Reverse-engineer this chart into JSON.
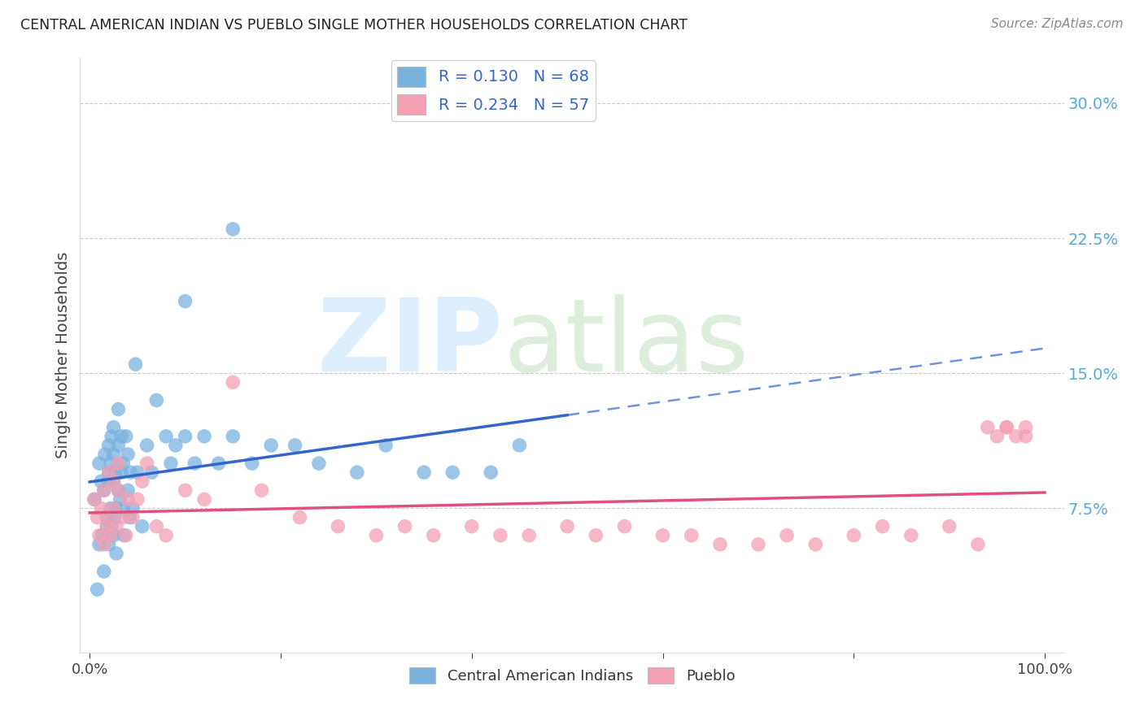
{
  "title": "CENTRAL AMERICAN INDIAN VS PUEBLO SINGLE MOTHER HOUSEHOLDS CORRELATION CHART",
  "source": "Source: ZipAtlas.com",
  "ylabel": "Single Mother Households",
  "R_blue": 0.13,
  "N_blue": 68,
  "R_pink": 0.234,
  "N_pink": 57,
  "blue_color": "#7ab3e0",
  "pink_color": "#f4a0b5",
  "blue_line_color": "#3366cc",
  "pink_line_color": "#e0507a",
  "grid_color": "#bbbbbb",
  "ytick_vals": [
    0.0,
    0.075,
    0.15,
    0.225,
    0.3
  ],
  "ytick_labels": [
    "",
    "7.5%",
    "15.0%",
    "22.5%",
    "30.0%"
  ],
  "blue_scatter_x": [
    0.005,
    0.008,
    0.01,
    0.01,
    0.012,
    0.013,
    0.015,
    0.015,
    0.016,
    0.018,
    0.018,
    0.02,
    0.02,
    0.02,
    0.02,
    0.022,
    0.022,
    0.023,
    0.023,
    0.025,
    0.025,
    0.025,
    0.025,
    0.026,
    0.027,
    0.027,
    0.028,
    0.03,
    0.03,
    0.03,
    0.032,
    0.033,
    0.033,
    0.035,
    0.035,
    0.036,
    0.038,
    0.04,
    0.04,
    0.042,
    0.043,
    0.045,
    0.048,
    0.05,
    0.055,
    0.06,
    0.065,
    0.07,
    0.08,
    0.085,
    0.09,
    0.1,
    0.11,
    0.12,
    0.135,
    0.15,
    0.17,
    0.19,
    0.215,
    0.24,
    0.28,
    0.31,
    0.35,
    0.38,
    0.42,
    0.45,
    0.1,
    0.15
  ],
  "blue_scatter_y": [
    0.08,
    0.03,
    0.055,
    0.1,
    0.09,
    0.06,
    0.04,
    0.085,
    0.105,
    0.07,
    0.065,
    0.055,
    0.09,
    0.095,
    0.11,
    0.075,
    0.1,
    0.065,
    0.115,
    0.06,
    0.09,
    0.105,
    0.12,
    0.07,
    0.075,
    0.095,
    0.05,
    0.085,
    0.11,
    0.13,
    0.08,
    0.095,
    0.115,
    0.075,
    0.1,
    0.06,
    0.115,
    0.085,
    0.105,
    0.07,
    0.095,
    0.075,
    0.155,
    0.095,
    0.065,
    0.11,
    0.095,
    0.135,
    0.115,
    0.1,
    0.11,
    0.115,
    0.1,
    0.115,
    0.1,
    0.115,
    0.1,
    0.11,
    0.11,
    0.1,
    0.095,
    0.11,
    0.095,
    0.095,
    0.095,
    0.11,
    0.19,
    0.23
  ],
  "pink_scatter_x": [
    0.005,
    0.008,
    0.01,
    0.012,
    0.015,
    0.015,
    0.018,
    0.02,
    0.02,
    0.022,
    0.025,
    0.025,
    0.028,
    0.03,
    0.03,
    0.035,
    0.038,
    0.04,
    0.045,
    0.05,
    0.055,
    0.06,
    0.07,
    0.08,
    0.1,
    0.12,
    0.15,
    0.18,
    0.22,
    0.26,
    0.3,
    0.33,
    0.36,
    0.4,
    0.43,
    0.46,
    0.5,
    0.53,
    0.56,
    0.6,
    0.63,
    0.66,
    0.7,
    0.73,
    0.76,
    0.8,
    0.83,
    0.86,
    0.9,
    0.93,
    0.96,
    0.98,
    0.98,
    0.97,
    0.96,
    0.95,
    0.94
  ],
  "pink_scatter_y": [
    0.08,
    0.07,
    0.06,
    0.075,
    0.055,
    0.085,
    0.065,
    0.07,
    0.095,
    0.06,
    0.075,
    0.09,
    0.065,
    0.085,
    0.1,
    0.07,
    0.06,
    0.08,
    0.07,
    0.08,
    0.09,
    0.1,
    0.065,
    0.06,
    0.085,
    0.08,
    0.145,
    0.085,
    0.07,
    0.065,
    0.06,
    0.065,
    0.06,
    0.065,
    0.06,
    0.06,
    0.065,
    0.06,
    0.065,
    0.06,
    0.06,
    0.055,
    0.055,
    0.06,
    0.055,
    0.06,
    0.065,
    0.06,
    0.065,
    0.055,
    0.12,
    0.115,
    0.12,
    0.115,
    0.12,
    0.115,
    0.12
  ]
}
